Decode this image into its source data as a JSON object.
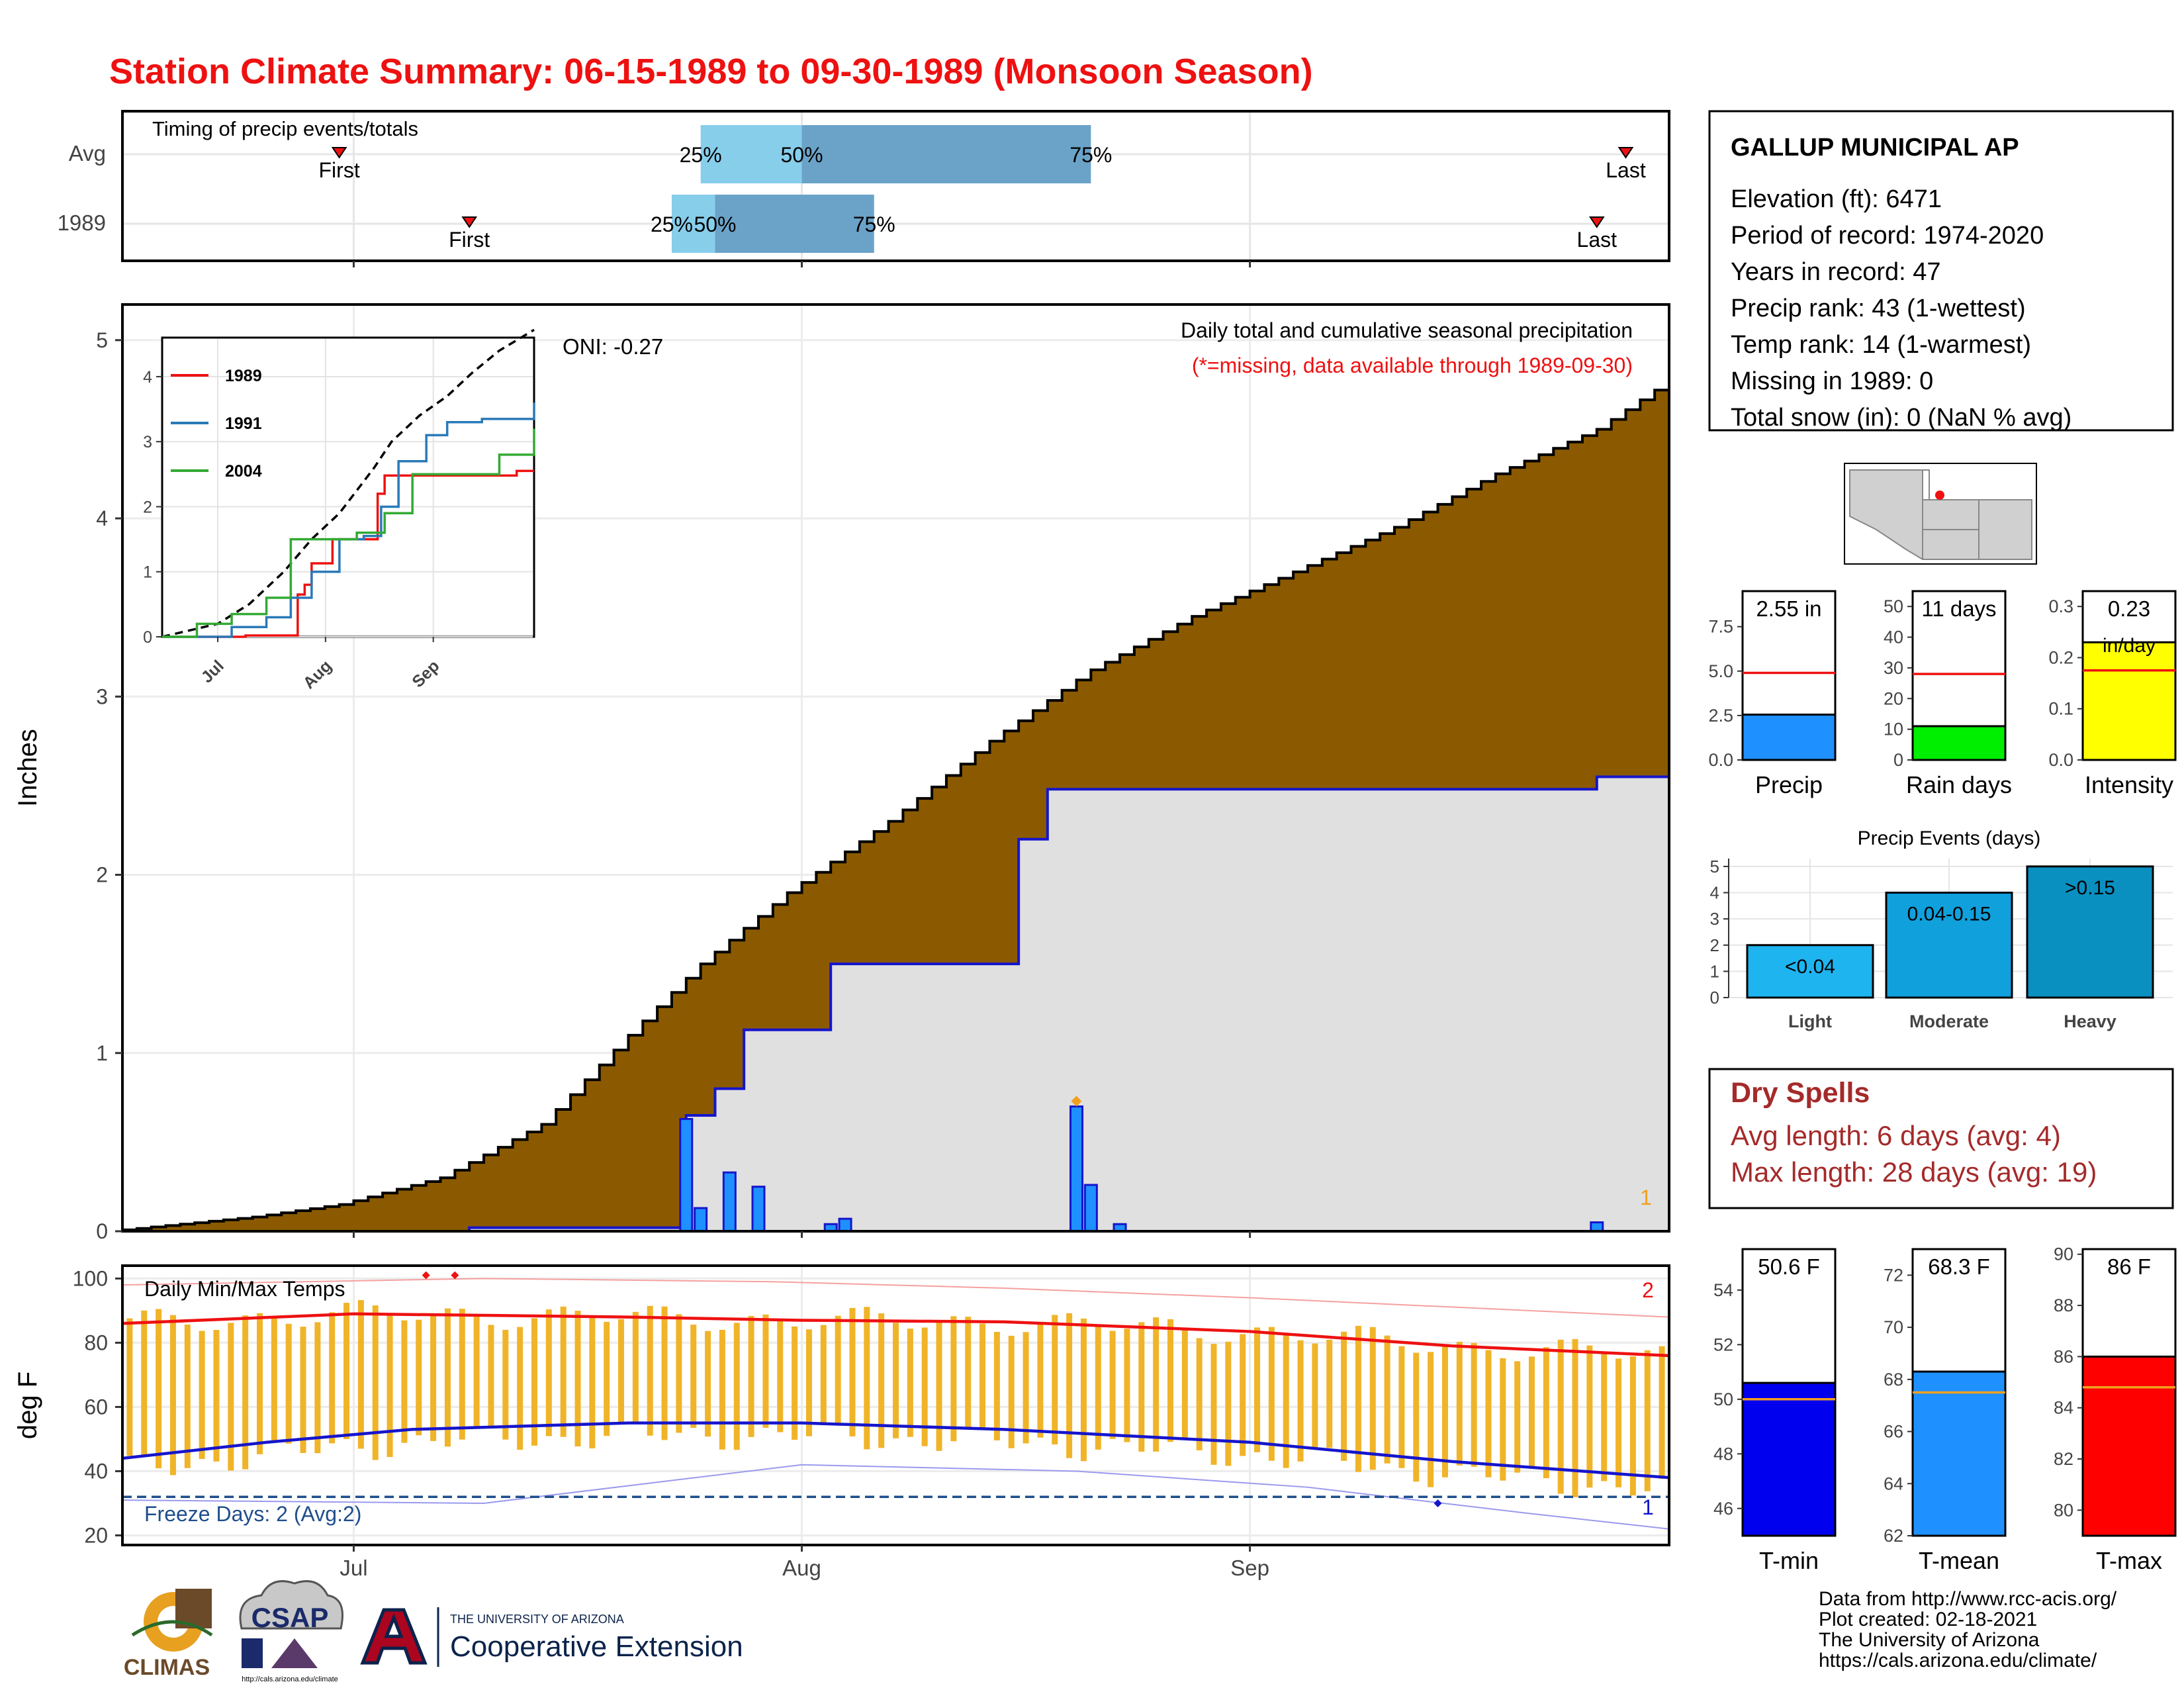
{
  "title": "Station Climate Summary: 06-15-1989 to 09-30-1989 (Monsoon Season)",
  "colors": {
    "title": "#ee1111",
    "brown": "#8b5a00",
    "gray_area": "#e0e0e0",
    "blue_line": "#1515cc",
    "bar_blue": "#1e90ff",
    "orange": "#f0b429",
    "red": "#ee1111",
    "dryspell": "#a52a2a",
    "freeze": "#1f4e8c",
    "light_band": "#87ceeb",
    "dark_band": "#6ba3c8"
  },
  "x_axis_ticks": [
    "Jul",
    "Aug",
    "Sep"
  ],
  "timing": {
    "title": "Timing of precip events/totals",
    "rows": [
      "Avg",
      "1989"
    ],
    "first_label": "First",
    "last_label": "Last",
    "avg": {
      "first": "1989-06-30",
      "p25": "1989-07-25",
      "p50": "1989-08-01",
      "p75": "1989-08-21",
      "last": "1989-09-27"
    },
    "y1989": {
      "first": "1989-07-09",
      "p25": "1989-07-23",
      "p50": "1989-07-26",
      "p75": "1989-08-06",
      "last": "1989-09-25"
    },
    "p25_label": "25%",
    "p50_label": "50%",
    "p75_label": "75%"
  },
  "precip_panel": {
    "ylabel": "Inches",
    "subtitle": "Daily total and cumulative seasonal precipitation",
    "missing_note": "(*=missing, data available through 1989-09-30)",
    "oni": "ONI: -0.27",
    "corner_label": "1",
    "yticks": [
      "0",
      "1",
      "2",
      "3",
      "4",
      "5"
    ]
  },
  "inset": {
    "legend": [
      "1989",
      "1991",
      "2004"
    ],
    "legend_colors": [
      "#ee1111",
      "#2a7ab8",
      "#33aa33"
    ],
    "yticks": [
      "0",
      "1",
      "2",
      "3",
      "4"
    ],
    "xticks": [
      "Jul",
      "Aug",
      "Sep"
    ]
  },
  "temp_panel": {
    "ylabel": "deg F",
    "title": "Daily Min/Max Temps",
    "freeze_text": "Freeze Days: 2 (Avg:2)",
    "high_count": "2",
    "low_count": "1",
    "yticks": [
      "20",
      "40",
      "60",
      "80",
      "100"
    ]
  },
  "station": {
    "name": "GALLUP MUNICIPAL AP",
    "lines": [
      "Elevation (ft): 6471",
      "Period of record: 1974-2020",
      "Years in record: 47",
      "Precip rank: 43 (1-wettest)",
      "Temp rank: 14 (1-warmest)",
      "Missing in 1989: 0",
      "Total snow (in): 0 (NaN % avg)"
    ]
  },
  "precip_bars": [
    {
      "name": "Precip",
      "label": "2.55 in",
      "value": 2.55,
      "avg": 4.9,
      "max": 9.5,
      "ticks": [
        "0.0",
        "2.5",
        "5.0",
        "7.5"
      ],
      "tickvals": [
        0,
        2.5,
        5,
        7.5
      ],
      "color": "#1e90ff"
    },
    {
      "name": "Rain days",
      "label": "11 days",
      "value": 11,
      "avg": 28,
      "max": 55,
      "ticks": [
        "0",
        "10",
        "20",
        "30",
        "40",
        "50"
      ],
      "tickvals": [
        0,
        10,
        20,
        30,
        40,
        50
      ],
      "color": "#00ee00"
    },
    {
      "name": "Intensity",
      "label": "0.23",
      "label2": "in/day",
      "value": 0.23,
      "avg": 0.175,
      "max": 0.33,
      "ticks": [
        "0.0",
        "0.1",
        "0.2",
        "0.3"
      ],
      "tickvals": [
        0,
        0.1,
        0.2,
        0.3
      ],
      "color": "#ffff00"
    }
  ],
  "precip_events": {
    "title": "Precip Events (days)",
    "categories": [
      "Light",
      "Moderate",
      "Heavy"
    ],
    "values": [
      2,
      4,
      5
    ],
    "labels": [
      "<0.04",
      "0.04-0.15",
      ">0.15"
    ],
    "colors": [
      "#1eb4f0",
      "#10a0dc",
      "#0a90c0"
    ],
    "yticks": [
      "0",
      "1",
      "2",
      "3",
      "4",
      "5"
    ]
  },
  "dry_spells": {
    "title": "Dry Spells",
    "avg_line": "Avg length: 6 days (avg: 4)",
    "max_line": "Max length: 28 days (avg: 19)"
  },
  "temp_bars": [
    {
      "name": "T-min",
      "label": "50.6 F",
      "value": 50.6,
      "avg": 50.0,
      "min": 45,
      "max": 55.5,
      "ticks": [
        "46",
        "48",
        "50",
        "52",
        "54"
      ],
      "tickvals": [
        46,
        48,
        50,
        52,
        54
      ],
      "color": "#0000ee"
    },
    {
      "name": "T-mean",
      "label": "68.3 F",
      "value": 68.3,
      "avg": 67.5,
      "min": 62,
      "max": 73,
      "ticks": [
        "62",
        "64",
        "66",
        "68",
        "70",
        "72"
      ],
      "tickvals": [
        62,
        64,
        66,
        68,
        70,
        72
      ],
      "color": "#1e90ff"
    },
    {
      "name": "T-max",
      "label": "86 F",
      "value": 86,
      "avg": 84.8,
      "min": 79,
      "max": 90.2,
      "ticks": [
        "80",
        "82",
        "84",
        "86",
        "88",
        "90"
      ],
      "tickvals": [
        80,
        82,
        84,
        86,
        88,
        90
      ],
      "color": "#ff0000"
    }
  ],
  "footer": {
    "lines": [
      "Data from http://www.rcc-acis.org/",
      "Plot created: 02-18-2021",
      "The University of Arizona",
      "https://cals.arizona.edu/climate/"
    ],
    "logo_climas": "CLIMAS",
    "logo_csap": "CSAP",
    "logo_csap_url": "http://cals.arizona.edu/climate",
    "ua_small": "THE UNIVERSITY OF ARIZONA",
    "ua_big": "Cooperative Extension"
  },
  "chart_data": [
    {
      "type": "area",
      "name": "cumulative seasonal precipitation",
      "x_range": [
        "1989-06-15",
        "1989-09-30"
      ],
      "ylim": [
        0,
        5.2
      ],
      "avg_cumulative": {
        "x": [
          "1989-06-15",
          "1989-06-25",
          "1989-07-01",
          "1989-07-08",
          "1989-07-15",
          "1989-07-21",
          "1989-07-26",
          "1989-08-01",
          "1989-08-08",
          "1989-08-15",
          "1989-08-22",
          "1989-08-29",
          "1989-09-05",
          "1989-09-12",
          "1989-09-19",
          "1989-09-26",
          "1989-09-30"
        ],
        "y": [
          0,
          0.08,
          0.15,
          0.3,
          0.6,
          1.1,
          1.5,
          1.9,
          2.3,
          2.75,
          3.15,
          3.45,
          3.7,
          3.95,
          4.25,
          4.5,
          4.72
        ]
      },
      "cumulative_1989": {
        "x": [
          "1989-06-15",
          "1989-07-09",
          "1989-07-21",
          "1989-07-24",
          "1989-07-26",
          "1989-07-28",
          "1989-08-03",
          "1989-08-05",
          "1989-08-15",
          "1989-08-16",
          "1989-08-18",
          "1989-09-25",
          "1989-09-30"
        ],
        "y": [
          0,
          0.02,
          0.02,
          0.65,
          0.8,
          1.13,
          1.5,
          1.5,
          1.5,
          2.2,
          2.48,
          2.55,
          2.55
        ]
      },
      "daily_1989": {
        "x": [
          "1989-07-24",
          "1989-07-25",
          "1989-07-27",
          "1989-07-29",
          "1989-08-03",
          "1989-08-04",
          "1989-08-20",
          "1989-08-21",
          "1989-08-23",
          "1989-09-25"
        ],
        "y": [
          0.63,
          0.13,
          0.33,
          0.25,
          0.04,
          0.07,
          0.7,
          0.26,
          0.04,
          0.05
        ]
      }
    },
    {
      "type": "line",
      "name": "inset cumulative analog years",
      "ylim": [
        0,
        4.6
      ],
      "series": [
        {
          "name": "",
          "x": [
            "06-15",
            "07-01",
            "07-10",
            "07-20",
            "07-28",
            "08-05",
            "08-15",
            "08-20",
            "08-28",
            "09-05",
            "09-12",
            "09-20",
            "09-30"
          ],
          "y": [
            0,
            0.2,
            0.5,
            1.0,
            1.5,
            1.9,
            2.6,
            3.0,
            3.4,
            3.7,
            4.05,
            4.4,
            4.72
          ]
        },
        {
          "name": "1989",
          "x": [
            "06-15",
            "07-09",
            "07-21",
            "07-24",
            "07-26",
            "07-28",
            "08-03",
            "08-15",
            "08-16",
            "08-18",
            "09-25",
            "09-30"
          ],
          "y": [
            0,
            0.02,
            0.02,
            0.65,
            0.8,
            1.13,
            1.5,
            1.5,
            2.2,
            2.48,
            2.55,
            2.55
          ]
        },
        {
          "name": "1991",
          "x": [
            "06-15",
            "07-05",
            "07-15",
            "07-22",
            "07-28",
            "08-05",
            "08-12",
            "08-17",
            "08-22",
            "08-30",
            "09-05",
            "09-15",
            "09-29",
            "09-30"
          ],
          "y": [
            0,
            0.15,
            0.3,
            0.6,
            1.0,
            1.5,
            1.55,
            2.0,
            2.7,
            3.1,
            3.3,
            3.35,
            3.35,
            3.6
          ]
        },
        {
          "name": "2004",
          "x": [
            "06-15",
            "06-25",
            "07-05",
            "07-15",
            "07-22",
            "08-05",
            "08-10",
            "08-18",
            "08-26",
            "09-10",
            "09-20",
            "09-30"
          ],
          "y": [
            0,
            0.2,
            0.35,
            0.6,
            1.5,
            1.5,
            1.6,
            1.9,
            2.5,
            2.5,
            2.8,
            3.2
          ]
        }
      ]
    },
    {
      "type": "line",
      "name": "daily min/max temps",
      "ylim": [
        17,
        104
      ],
      "freeze_line": 32,
      "avg_max": {
        "x": [
          "06-15",
          "07-01",
          "07-20",
          "08-01",
          "08-15",
          "09-01",
          "09-15",
          "09-30"
        ],
        "y": [
          86,
          89,
          88,
          87,
          86.5,
          83.5,
          79,
          76
        ]
      },
      "avg_min": {
        "x": [
          "06-15",
          "06-25",
          "07-05",
          "07-20",
          "08-01",
          "08-15",
          "09-01",
          "09-15",
          "09-30"
        ],
        "y": [
          44,
          49,
          53,
          55,
          55,
          53,
          49,
          43,
          38
        ]
      },
      "record_max": {
        "x": [
          "06-15",
          "07-10",
          "07-30",
          "08-15",
          "09-01",
          "09-30"
        ],
        "y": [
          98,
          100,
          99,
          97,
          94,
          88
        ]
      },
      "record_min": {
        "x": [
          "06-15",
          "07-10",
          "08-01",
          "08-20",
          "09-05",
          "09-20",
          "09-30"
        ],
        "y": [
          31,
          30,
          42,
          40,
          35,
          27,
          22
        ]
      }
    }
  ]
}
